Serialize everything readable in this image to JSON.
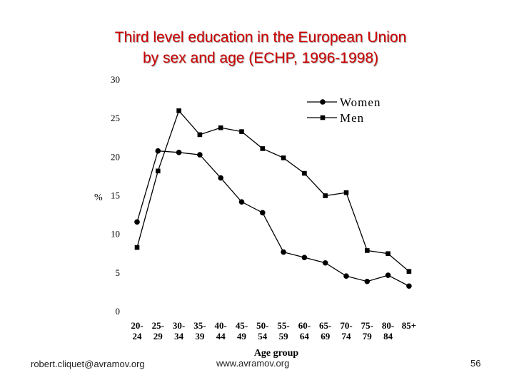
{
  "slide": {
    "title_line1": "Third level education in the European Union",
    "title_line2": "by sex and age (ECHP, 1996-1998)",
    "footer_left": "robert.cliquet@avramov.org",
    "footer_center": "www.avramov.org",
    "page_number": "56"
  },
  "colors": {
    "title": "#cc0000",
    "series": "#000000"
  },
  "chart_data": {
    "type": "line",
    "title": "",
    "xlabel": "Age group",
    "ylabel": "%",
    "ylim": [
      0,
      30
    ],
    "yticks": [
      0,
      5,
      10,
      15,
      20,
      25,
      30
    ],
    "grid": false,
    "legend_position": "top-right",
    "categories": [
      [
        "20-",
        "24"
      ],
      [
        "25-",
        "29"
      ],
      [
        "30-",
        "34"
      ],
      [
        "35-",
        "39"
      ],
      [
        "40-",
        "44"
      ],
      [
        "45-",
        "49"
      ],
      [
        "50-",
        "54"
      ],
      [
        "55-",
        "59"
      ],
      [
        "60-",
        "64"
      ],
      [
        "65-",
        "69"
      ],
      [
        "70-",
        "74"
      ],
      [
        "75-",
        "79"
      ],
      [
        "80-",
        "84"
      ],
      [
        "85+",
        ""
      ]
    ],
    "series": [
      {
        "name": "Women",
        "marker": "circle",
        "values": [
          11.6,
          20.8,
          20.6,
          20.3,
          17.3,
          14.2,
          12.8,
          7.7,
          7.0,
          6.3,
          4.6,
          3.9,
          4.7,
          3.3
        ]
      },
      {
        "name": "Men",
        "marker": "square",
        "values": [
          8.3,
          18.2,
          26.0,
          22.9,
          23.8,
          23.3,
          21.1,
          19.9,
          17.9,
          15.0,
          15.4,
          7.9,
          7.5,
          5.2
        ]
      }
    ]
  }
}
